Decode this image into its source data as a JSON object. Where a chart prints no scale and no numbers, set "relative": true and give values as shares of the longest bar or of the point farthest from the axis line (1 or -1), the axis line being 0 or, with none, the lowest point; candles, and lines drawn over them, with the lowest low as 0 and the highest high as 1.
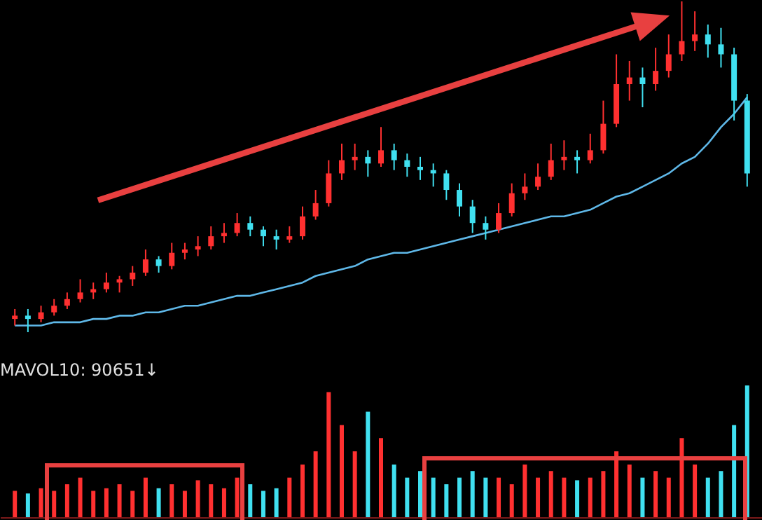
{
  "chart_data": [
    {
      "type": "candlestick",
      "relative": true,
      "categories": [
        null,
        null,
        null,
        null,
        null,
        null,
        null,
        null,
        null,
        null,
        null,
        null,
        null,
        null,
        null,
        null,
        null,
        null,
        null,
        null,
        null,
        null,
        null,
        null,
        null,
        null,
        null,
        null,
        null,
        null,
        null,
        null,
        null,
        null,
        null,
        null,
        null,
        null,
        null,
        null,
        null,
        null,
        null,
        null,
        null,
        null,
        null,
        null,
        null,
        null,
        null,
        null,
        null,
        null,
        null,
        null,
        null
      ],
      "ohlc": [
        [
          0.04,
          0.07,
          0.02,
          0.05
        ],
        [
          0.05,
          0.07,
          0.0,
          0.04
        ],
        [
          0.04,
          0.08,
          0.03,
          0.06
        ],
        [
          0.06,
          0.1,
          0.05,
          0.08
        ],
        [
          0.08,
          0.12,
          0.07,
          0.1
        ],
        [
          0.1,
          0.16,
          0.09,
          0.12
        ],
        [
          0.12,
          0.15,
          0.1,
          0.13
        ],
        [
          0.13,
          0.18,
          0.12,
          0.15
        ],
        [
          0.15,
          0.17,
          0.12,
          0.16
        ],
        [
          0.16,
          0.2,
          0.14,
          0.18
        ],
        [
          0.18,
          0.25,
          0.17,
          0.22
        ],
        [
          0.22,
          0.23,
          0.18,
          0.2
        ],
        [
          0.2,
          0.27,
          0.19,
          0.24
        ],
        [
          0.24,
          0.27,
          0.22,
          0.25
        ],
        [
          0.25,
          0.29,
          0.23,
          0.26
        ],
        [
          0.26,
          0.32,
          0.25,
          0.29
        ],
        [
          0.29,
          0.33,
          0.27,
          0.3
        ],
        [
          0.3,
          0.36,
          0.29,
          0.33
        ],
        [
          0.33,
          0.35,
          0.29,
          0.31
        ],
        [
          0.31,
          0.32,
          0.26,
          0.29
        ],
        [
          0.29,
          0.31,
          0.25,
          0.28
        ],
        [
          0.28,
          0.32,
          0.27,
          0.29
        ],
        [
          0.29,
          0.38,
          0.28,
          0.35
        ],
        [
          0.35,
          0.43,
          0.34,
          0.39
        ],
        [
          0.39,
          0.52,
          0.38,
          0.48
        ],
        [
          0.48,
          0.57,
          0.46,
          0.52
        ],
        [
          0.52,
          0.57,
          0.49,
          0.53
        ],
        [
          0.53,
          0.55,
          0.47,
          0.51
        ],
        [
          0.51,
          0.62,
          0.5,
          0.55
        ],
        [
          0.55,
          0.57,
          0.49,
          0.52
        ],
        [
          0.52,
          0.54,
          0.47,
          0.5
        ],
        [
          0.5,
          0.53,
          0.46,
          0.49
        ],
        [
          0.49,
          0.51,
          0.44,
          0.48
        ],
        [
          0.48,
          0.49,
          0.4,
          0.43
        ],
        [
          0.43,
          0.45,
          0.35,
          0.38
        ],
        [
          0.38,
          0.4,
          0.3,
          0.33
        ],
        [
          0.33,
          0.35,
          0.28,
          0.31
        ],
        [
          0.31,
          0.39,
          0.3,
          0.36
        ],
        [
          0.36,
          0.45,
          0.35,
          0.42
        ],
        [
          0.42,
          0.48,
          0.4,
          0.44
        ],
        [
          0.44,
          0.51,
          0.43,
          0.47
        ],
        [
          0.47,
          0.57,
          0.46,
          0.52
        ],
        [
          0.52,
          0.58,
          0.49,
          0.53
        ],
        [
          0.53,
          0.55,
          0.48,
          0.52
        ],
        [
          0.52,
          0.6,
          0.51,
          0.55
        ],
        [
          0.55,
          0.7,
          0.54,
          0.63
        ],
        [
          0.63,
          0.84,
          0.62,
          0.75
        ],
        [
          0.75,
          0.82,
          0.7,
          0.77
        ],
        [
          0.77,
          0.8,
          0.68,
          0.75
        ],
        [
          0.75,
          0.86,
          0.73,
          0.79
        ],
        [
          0.79,
          0.9,
          0.77,
          0.84
        ],
        [
          0.84,
          1.0,
          0.82,
          0.88
        ],
        [
          0.88,
          0.97,
          0.85,
          0.9
        ],
        [
          0.9,
          0.93,
          0.83,
          0.87
        ],
        [
          0.87,
          0.92,
          0.8,
          0.84
        ],
        [
          0.84,
          0.86,
          0.64,
          0.7
        ],
        [
          0.7,
          0.72,
          0.44,
          0.48
        ]
      ],
      "colors": [
        "#ff3030",
        "#40e0f0",
        "#ff3030",
        "#ff3030",
        "#ff3030",
        "#ff3030",
        "#ff3030",
        "#ff3030",
        "#ff3030",
        "#ff3030",
        "#ff3030",
        "#40e0f0",
        "#ff3030",
        "#ff3030",
        "#ff3030",
        "#ff3030",
        "#ff3030",
        "#ff3030",
        "#40e0f0",
        "#40e0f0",
        "#40e0f0",
        "#ff3030",
        "#ff3030",
        "#ff3030",
        "#ff3030",
        "#ff3030",
        "#ff3030",
        "#40e0f0",
        "#ff3030",
        "#40e0f0",
        "#40e0f0",
        "#40e0f0",
        "#40e0f0",
        "#40e0f0",
        "#40e0f0",
        "#40e0f0",
        "#40e0f0",
        "#ff3030",
        "#ff3030",
        "#ff3030",
        "#ff3030",
        "#ff3030",
        "#ff3030",
        "#40e0f0",
        "#ff3030",
        "#ff3030",
        "#ff3030",
        "#ff3030",
        "#40e0f0",
        "#ff3030",
        "#ff3030",
        "#ff3030",
        "#ff3030",
        "#40e0f0",
        "#40e0f0",
        "#40e0f0",
        "#40e0f0"
      ],
      "series": [
        {
          "type": "line",
          "color": "#5fb8e8",
          "values": [
            0.02,
            0.02,
            0.02,
            0.03,
            0.03,
            0.03,
            0.04,
            0.04,
            0.05,
            0.05,
            0.06,
            0.06,
            0.07,
            0.08,
            0.08,
            0.09,
            0.1,
            0.11,
            0.11,
            0.12,
            0.13,
            0.14,
            0.15,
            0.17,
            0.18,
            0.19,
            0.2,
            0.22,
            0.23,
            0.24,
            0.24,
            0.25,
            0.26,
            0.27,
            0.28,
            0.29,
            0.3,
            0.31,
            0.32,
            0.33,
            0.34,
            0.35,
            0.35,
            0.36,
            0.37,
            0.39,
            0.41,
            0.42,
            0.44,
            0.46,
            0.48,
            0.51,
            0.53,
            0.57,
            0.62,
            0.66,
            0.71
          ]
        }
      ]
    },
    {
      "type": "bar",
      "relative": true,
      "title": "MAVOL10: 90651↓",
      "categories": [
        null,
        null,
        null,
        null,
        null,
        null,
        null,
        null,
        null,
        null,
        null,
        null,
        null,
        null,
        null,
        null,
        null,
        null,
        null,
        null,
        null,
        null,
        null,
        null,
        null,
        null,
        null,
        null,
        null,
        null,
        null,
        null,
        null,
        null,
        null,
        null,
        null,
        null,
        null,
        null,
        null,
        null,
        null,
        null,
        null,
        null,
        null,
        null,
        null,
        null,
        null,
        null,
        null,
        null,
        null,
        null,
        null
      ],
      "values": [
        0.2,
        0.18,
        0.22,
        0.2,
        0.25,
        0.3,
        0.2,
        0.22,
        0.25,
        0.2,
        0.3,
        0.22,
        0.25,
        0.2,
        0.28,
        0.25,
        0.22,
        0.3,
        0.25,
        0.2,
        0.22,
        0.3,
        0.4,
        0.5,
        0.95,
        0.7,
        0.5,
        0.8,
        0.6,
        0.4,
        0.3,
        0.35,
        0.3,
        0.25,
        0.3,
        0.35,
        0.3,
        0.3,
        0.25,
        0.4,
        0.3,
        0.35,
        0.3,
        0.28,
        0.3,
        0.35,
        0.5,
        0.4,
        0.3,
        0.35,
        0.3,
        0.6,
        0.4,
        0.3,
        0.35,
        0.7,
        1.0
      ],
      "colors": [
        "#ff3030",
        "#40e0f0",
        "#ff3030",
        "#ff3030",
        "#ff3030",
        "#ff3030",
        "#ff3030",
        "#ff3030",
        "#ff3030",
        "#ff3030",
        "#ff3030",
        "#40e0f0",
        "#ff3030",
        "#ff3030",
        "#ff3030",
        "#ff3030",
        "#ff3030",
        "#ff3030",
        "#40e0f0",
        "#40e0f0",
        "#40e0f0",
        "#ff3030",
        "#ff3030",
        "#ff3030",
        "#ff3030",
        "#ff3030",
        "#ff3030",
        "#40e0f0",
        "#ff3030",
        "#40e0f0",
        "#40e0f0",
        "#40e0f0",
        "#40e0f0",
        "#40e0f0",
        "#40e0f0",
        "#40e0f0",
        "#40e0f0",
        "#ff3030",
        "#ff3030",
        "#ff3030",
        "#ff3030",
        "#ff3030",
        "#ff3030",
        "#40e0f0",
        "#ff3030",
        "#ff3030",
        "#ff3030",
        "#ff3030",
        "#40e0f0",
        "#ff3030",
        "#ff3030",
        "#ff3030",
        "#ff3030",
        "#40e0f0",
        "#40e0f0",
        "#40e0f0",
        "#40e0f0"
      ]
    }
  ]
}
